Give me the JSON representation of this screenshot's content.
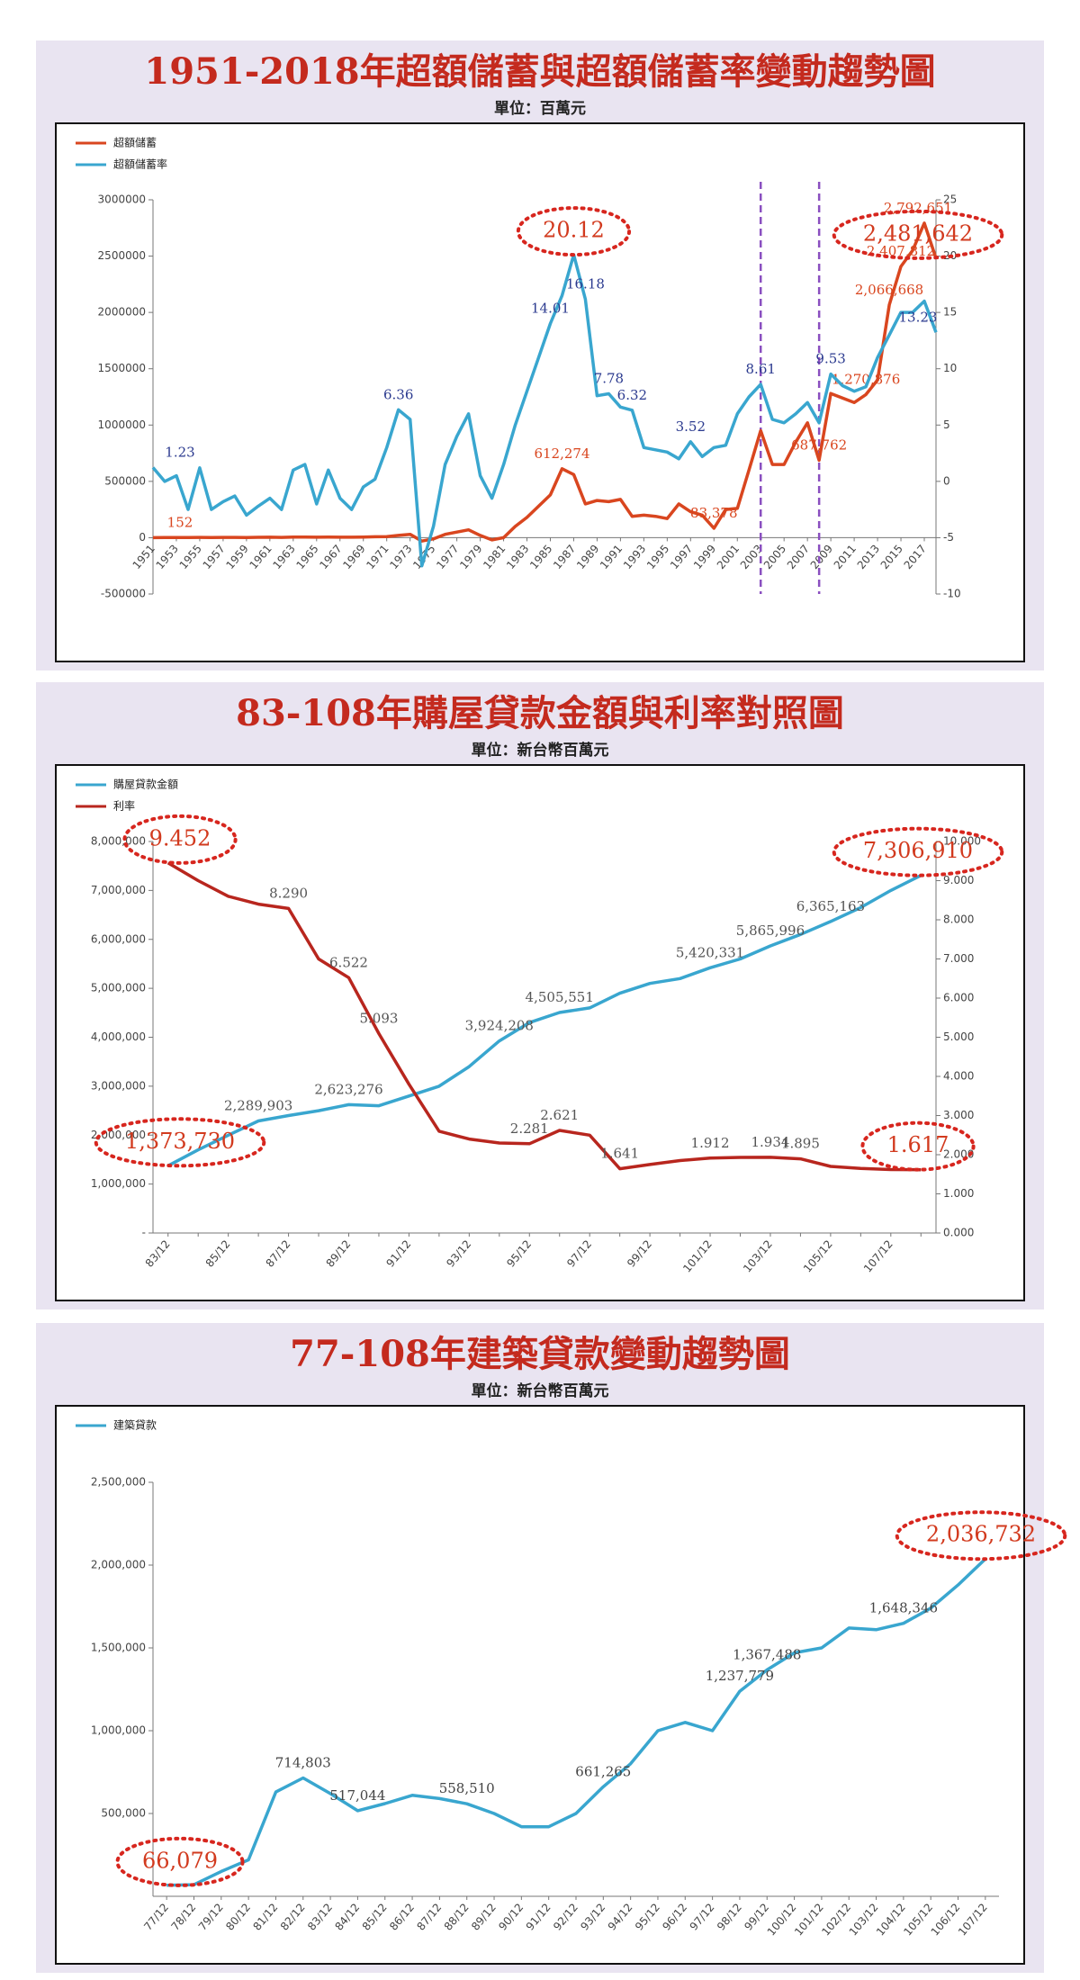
{
  "chart_data": [
    {
      "type": "line",
      "title": "1951-2018年超額儲蓄與超額儲蓄率變動趨勢圖",
      "subtitle": "單位：百萬元",
      "x": [
        1951,
        1952,
        1953,
        1954,
        1955,
        1956,
        1957,
        1958,
        1959,
        1960,
        1961,
        1962,
        1963,
        1964,
        1965,
        1966,
        1967,
        1968,
        1969,
        1970,
        1971,
        1972,
        1973,
        1974,
        1975,
        1976,
        1977,
        1978,
        1979,
        1980,
        1981,
        1982,
        1983,
        1984,
        1985,
        1986,
        1987,
        1988,
        1989,
        1990,
        1991,
        1992,
        1993,
        1994,
        1995,
        1996,
        1997,
        1998,
        1999,
        2000,
        2001,
        2002,
        2003,
        2004,
        2005,
        2006,
        2007,
        2008,
        2009,
        2010,
        2011,
        2012,
        2013,
        2014,
        2015,
        2016,
        2017,
        2018
      ],
      "xlim": [
        1951,
        2018
      ],
      "xticks": [
        1951,
        1953,
        1955,
        1957,
        1959,
        1961,
        1963,
        1965,
        1967,
        1969,
        1971,
        1973,
        1975,
        1977,
        1979,
        1981,
        1983,
        1985,
        1987,
        1989,
        1991,
        1993,
        1995,
        1997,
        1999,
        2001,
        2003,
        2005,
        2007,
        2009,
        2011,
        2013,
        2015,
        2017
      ],
      "ylim": [
        -500000,
        3000000
      ],
      "yticks": [
        -500000,
        0,
        500000,
        1000000,
        1500000,
        2000000,
        2500000,
        3000000
      ],
      "y2lim": [
        -10,
        25
      ],
      "y2ticks": [
        -10,
        -5,
        0,
        5,
        10,
        15,
        20,
        25
      ],
      "vlines": [
        2003,
        2008
      ],
      "vline_color": "#8a4fc0",
      "series": [
        {
          "name": "超額儲蓄",
          "color": "#d9461f",
          "label_color": "#d9461f",
          "highlight": [
            67
          ],
          "values": [
            152,
            1000,
            2000,
            1500,
            3000,
            2000,
            2500,
            3000,
            2000,
            3500,
            4000,
            3000,
            5000,
            6000,
            4000,
            5000,
            4500,
            4000,
            6000,
            8000,
            10000,
            20000,
            30000,
            -30000,
            -10000,
            30000,
            50000,
            70000,
            20000,
            -20000,
            0,
            100000,
            180000,
            280000,
            380000,
            612274,
            560000,
            300000,
            330000,
            320000,
            340000,
            190000,
            200000,
            190000,
            170000,
            300000,
            230000,
            200000,
            83378,
            250000,
            260000,
            600000,
            950000,
            650000,
            650000,
            850000,
            1020000,
            687762,
            1280000,
            1240000,
            1200000,
            1270876,
            1400000,
            2066668,
            2407812,
            2550000,
            2792651,
            2481642
          ],
          "value_labels": [
            "152",
            null,
            null,
            null,
            null,
            null,
            null,
            null,
            null,
            null,
            null,
            null,
            null,
            null,
            null,
            null,
            null,
            null,
            null,
            null,
            null,
            null,
            null,
            null,
            null,
            null,
            null,
            null,
            null,
            null,
            null,
            null,
            null,
            null,
            null,
            "612,274",
            null,
            null,
            null,
            null,
            null,
            null,
            null,
            null,
            null,
            null,
            null,
            null,
            "83,378",
            null,
            null,
            null,
            null,
            null,
            null,
            null,
            null,
            "687,762",
            null,
            null,
            null,
            "1,270,876",
            null,
            "2,066,668",
            "2,407,812",
            null,
            "2,792,651",
            "2,481,642"
          ]
        },
        {
          "name": "超額儲蓄率",
          "color": "#39a6cf",
          "label_color": "#2b3a8f",
          "axis": "y2",
          "highlight": [
            36
          ],
          "values": [
            1.23,
            0,
            0.5,
            -2.5,
            1.2,
            -2.5,
            -1.8,
            -1.3,
            -3,
            -2.2,
            -1.5,
            -2.5,
            1,
            1.5,
            -2,
            1,
            -1.5,
            -2.5,
            -0.5,
            0.2,
            3,
            6.36,
            5.5,
            -7.5,
            -4,
            1.5,
            4,
            6,
            0.5,
            -1.5,
            1.5,
            5,
            8,
            11,
            14.01,
            16.5,
            20.12,
            16.18,
            7.6,
            7.78,
            6.6,
            6.32,
            3,
            2.8,
            2.6,
            2,
            3.52,
            2.2,
            3,
            3.2,
            6,
            7.5,
            8.61,
            5.5,
            5.2,
            6,
            7,
            5.2,
            9.53,
            8.5,
            8,
            8.4,
            11,
            13,
            15,
            15,
            16,
            13.23
          ],
          "value_labels": [
            "1.23",
            null,
            null,
            null,
            null,
            null,
            null,
            null,
            null,
            null,
            null,
            null,
            null,
            null,
            null,
            null,
            null,
            null,
            null,
            null,
            null,
            "6.36",
            null,
            null,
            null,
            null,
            null,
            null,
            null,
            null,
            null,
            null,
            null,
            null,
            "14.01",
            null,
            "20.12",
            "16.18",
            null,
            "7.78",
            null,
            "6.32",
            null,
            null,
            null,
            null,
            "3.52",
            null,
            null,
            null,
            null,
            null,
            "8.61",
            null,
            null,
            null,
            null,
            null,
            "9.53",
            null,
            null,
            null,
            null,
            null,
            null,
            null,
            null,
            "13.23"
          ]
        }
      ]
    },
    {
      "type": "line",
      "title": "83-108年購屋貸款金額與利率對照圖",
      "subtitle": "單位：新台幣百萬元",
      "categories": [
        "83/12",
        null,
        "85/12",
        null,
        "87/12",
        null,
        "89/12",
        null,
        "91/12",
        null,
        "93/12",
        null,
        "95/12",
        null,
        "97/12",
        null,
        "99/12",
        null,
        "101/12",
        null,
        "103/12",
        null,
        "105/12",
        null,
        "107/12",
        null
      ],
      "ylim": [
        0,
        8000000
      ],
      "yticks": [
        {
          "value": 0,
          "label": "-"
        },
        {
          "value": 1000000,
          "label": "1,000,000"
        },
        {
          "value": 2000000,
          "label": "2,000,000"
        },
        {
          "value": 3000000,
          "label": "3,000,000"
        },
        {
          "value": 4000000,
          "label": "4,000,000"
        },
        {
          "value": 5000000,
          "label": "5,000,000"
        },
        {
          "value": 6000000,
          "label": "6,000,000"
        },
        {
          "value": 7000000,
          "label": "7,000,000"
        },
        {
          "value": 8000000,
          "label": "8,000,000"
        }
      ],
      "y2lim": [
        0,
        10
      ],
      "y2ticks": [
        {
          "value": 0,
          "label": "0.000"
        },
        {
          "value": 1,
          "label": "1.000"
        },
        {
          "value": 2,
          "label": "2.000"
        },
        {
          "value": 3,
          "label": "3.000"
        },
        {
          "value": 4,
          "label": "4.000"
        },
        {
          "value": 5,
          "label": "5.000"
        },
        {
          "value": 6,
          "label": "6.000"
        },
        {
          "value": 7,
          "label": "7.000"
        },
        {
          "value": 8,
          "label": "8.000"
        },
        {
          "value": 9,
          "label": "9.000"
        },
        {
          "value": 10,
          "label": "10.000"
        }
      ],
      "series": [
        {
          "name": "購屋貸款金額",
          "color": "#39a6cf",
          "label_color": "#555555",
          "highlight": [
            0,
            25
          ],
          "values": [
            1373730,
            1700000,
            2000000,
            2289903,
            2400000,
            2500000,
            2623276,
            2600000,
            2800000,
            3000000,
            3400000,
            3924208,
            4300000,
            4505551,
            4600000,
            4900000,
            5100000,
            5200000,
            5420331,
            5600000,
            5865996,
            6100000,
            6365163,
            6650000,
            7000000,
            7306910
          ],
          "value_labels": [
            "1,373,730",
            null,
            null,
            "2,289,903",
            null,
            null,
            "2,623,276",
            null,
            null,
            null,
            null,
            "3,924,208",
            null,
            "4,505,551",
            null,
            null,
            null,
            null,
            "5,420,331",
            null,
            "5,865,996",
            null,
            "6,365,163",
            null,
            null,
            "7,306,910"
          ]
        },
        {
          "name": "利率",
          "color": "#b8261e",
          "label_color": "#555555",
          "axis": "y2",
          "highlight": [
            0,
            25
          ],
          "values": [
            9.452,
            9.0,
            8.6,
            8.4,
            8.29,
            7.0,
            6.522,
            5.093,
            3.8,
            2.6,
            2.4,
            2.3,
            2.281,
            2.621,
            2.5,
            1.641,
            1.75,
            1.85,
            1.912,
            1.93,
            1.934,
            1.895,
            1.7,
            1.65,
            1.62,
            1.617
          ],
          "value_labels": [
            "9.452",
            null,
            null,
            null,
            "8.290",
            null,
            "6.522",
            "5.093",
            null,
            null,
            null,
            null,
            "2.281",
            "2.621",
            null,
            "1.641",
            null,
            null,
            "1.912",
            null,
            "1.934",
            "1.895",
            null,
            null,
            null,
            "1.617"
          ]
        }
      ]
    },
    {
      "type": "line",
      "title": "77-108年建築貸款變動趨勢圖",
      "subtitle": "單位：新台幣百萬元",
      "categories": [
        "77/12",
        "78/12",
        "79/12",
        "80/12",
        "81/12",
        "82/12",
        "83/12",
        "84/12",
        "85/12",
        "86/12",
        "87/12",
        "88/12",
        "89/12",
        "90/12",
        "91/12",
        "92/12",
        "93/12",
        "94/12",
        "95/12",
        "96/12",
        "97/12",
        "98/12",
        "99/12",
        "100/12",
        "101/12",
        "102/12",
        "103/12",
        "104/12",
        "105/12",
        "106/12",
        "107/12"
      ],
      "ylim": [
        0,
        2500000
      ],
      "yticks": [
        {
          "value": 500000,
          "label": "500,000"
        },
        {
          "value": 1000000,
          "label": "1,000,000"
        },
        {
          "value": 1500000,
          "label": "1,500,000"
        },
        {
          "value": 2000000,
          "label": "2,000,000"
        },
        {
          "value": 2500000,
          "label": "2,500,000"
        }
      ],
      "series": [
        {
          "name": "建築貸款",
          "color": "#39a6cf",
          "label_color": "#444444",
          "highlight": [
            0,
            30
          ],
          "values": [
            66079,
            70000,
            150000,
            220000,
            630000,
            714803,
            620000,
            517044,
            560000,
            610000,
            590000,
            558510,
            500000,
            420000,
            420000,
            500000,
            661265,
            800000,
            1000000,
            1050000,
            1000000,
            1237779,
            1367488,
            1470000,
            1500000,
            1620000,
            1610000,
            1648346,
            1740000,
            1880000,
            2036732
          ],
          "value_labels": [
            "66,079",
            null,
            null,
            null,
            null,
            "714,803",
            null,
            "517,044",
            null,
            null,
            null,
            "558,510",
            null,
            null,
            null,
            null,
            "661,265",
            null,
            null,
            null,
            null,
            "1,237,779",
            "1,367,488",
            null,
            null,
            null,
            null,
            "1,648,346",
            null,
            null,
            "2,036,732"
          ]
        }
      ]
    }
  ]
}
